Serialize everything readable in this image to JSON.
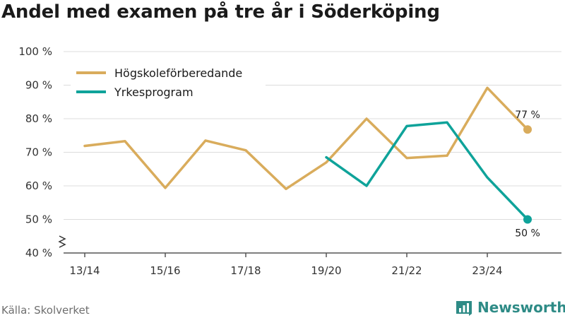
{
  "chart_data": {
    "type": "line",
    "title": "Andel med examen på tre år i Söderköping",
    "source": "Källa: Skolverket",
    "brand": "Newsworthy",
    "x": [
      "13/14",
      "14/15",
      "15/16",
      "16/17",
      "17/18",
      "18/19",
      "19/20",
      "20/21",
      "21/22",
      "22/23",
      "23/24",
      "24/25"
    ],
    "x_tick_labels": [
      "13/14",
      "15/16",
      "17/18",
      "19/20",
      "21/22",
      "23/24"
    ],
    "y_ticks": [
      40,
      50,
      60,
      70,
      80,
      90,
      100
    ],
    "y_tick_labels": [
      "40 %",
      "50 %",
      "60 %",
      "70 %",
      "80 %",
      "90 %",
      "100 %"
    ],
    "ylim": [
      40,
      100
    ],
    "grid": true,
    "legend_position": "top-left",
    "series": [
      {
        "name": "Högskoleförberedande",
        "color": "#d9ac5c",
        "values": [
          71.9,
          73.3,
          59.4,
          73.5,
          70.6,
          59.1,
          67.0,
          80.0,
          68.3,
          69.0,
          89.2,
          76.8
        ],
        "end_label": "77 %"
      },
      {
        "name": "Yrkesprogram",
        "color": "#0fa39a",
        "values": [
          null,
          null,
          null,
          null,
          null,
          null,
          68.5,
          60.0,
          77.8,
          78.9,
          62.5,
          50.0
        ],
        "end_label": "50 %"
      }
    ]
  },
  "logo_icon": "bar-chart-icon"
}
